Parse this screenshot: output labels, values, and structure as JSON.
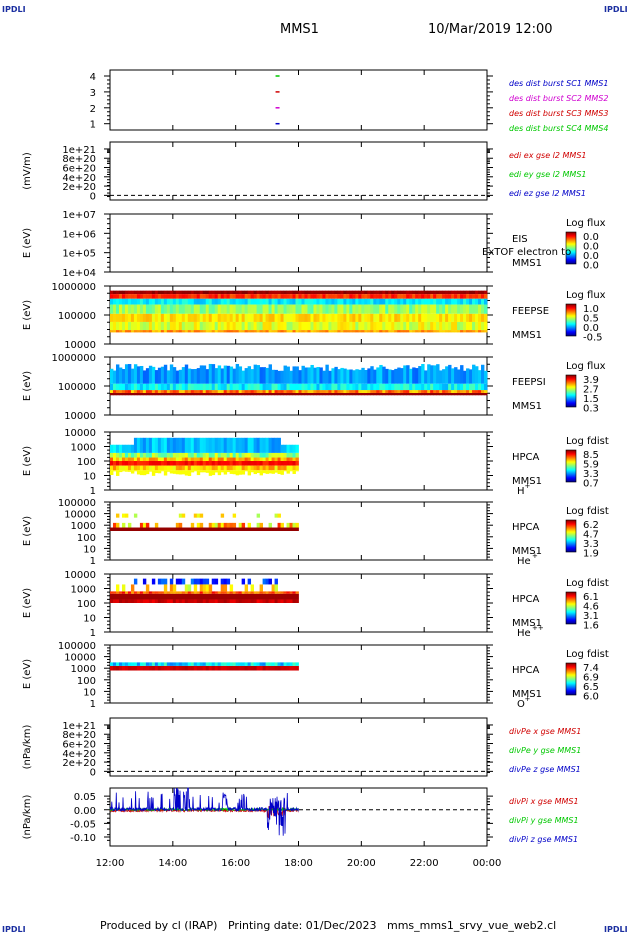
{
  "corner_label": "IPDLI",
  "title": "MMS1",
  "date": "10/Mar/2019 12:00",
  "footer": {
    "produced": "Produced by cl (IRAP)",
    "printing": "Printing date: 01/Dec/2023",
    "file": "mms_mms1_srvy_vue_web2.cl"
  },
  "colors": {
    "mms1": "#0000c8",
    "mms2": "#d000d0",
    "mms3": "#d00000",
    "mms4": "#00c800",
    "x": "#d00000",
    "y": "#00c800",
    "z": "#0000c8"
  },
  "chart_data": {
    "type": "multi-panel time series",
    "x_tick_labels": [
      "12:00",
      "14:00",
      "16:00",
      "18:00",
      "20:00",
      "22:00",
      "00:00"
    ],
    "xlim": [
      "12:00",
      "00:00"
    ],
    "panels": [
      {
        "id": "dist-burst",
        "type": "scatter",
        "y_ticks": [
          "4",
          "3",
          "2",
          "1"
        ],
        "legend": [
          {
            "text": "des dist burst SC1 MMS1",
            "color": "#0000c8"
          },
          {
            "text": "des dist burst SC2 MMS2",
            "color": "#d000d0"
          },
          {
            "text": "des dist burst SC3 MMS3",
            "color": "#d00000"
          },
          {
            "text": "des dist burst SC4 MMS4",
            "color": "#00c800"
          }
        ],
        "points": [
          {
            "x": "17:20",
            "y": 4,
            "color": "#00c800"
          },
          {
            "x": "17:20",
            "y": 3,
            "color": "#d00000"
          },
          {
            "x": "17:20",
            "y": 2,
            "color": "#d000d0"
          },
          {
            "x": "17:20",
            "y": 1,
            "color": "#0000c8"
          }
        ]
      },
      {
        "id": "edi-e",
        "type": "line",
        "ylabel": "(mV/m)",
        "y_ticks": [
          "1e+21",
          "8e+20",
          "6e+20",
          "4e+20",
          "2e+20",
          "0"
        ],
        "legend": [
          {
            "text": "edi ex gse l2 MMS1",
            "color": "#d00000"
          },
          {
            "text": "edi ey gse l2 MMS1",
            "color": "#00c800"
          },
          {
            "text": "edi ez gse l2 MMS1",
            "color": "#0000c8"
          }
        ],
        "zero_line": true
      },
      {
        "id": "eis",
        "type": "heatmap",
        "ylabel": "E (eV)",
        "y_ticks": [
          "1e+07",
          "1e+06",
          "1e+05",
          "1e+04"
        ],
        "labels": [
          "EIS",
          "MMS1"
        ],
        "overlay_text": "ExTOF electron to",
        "colorbar_title": "Log flux",
        "colorbar_ticks": [
          "0.0",
          "0.0",
          "0.0",
          "0.0"
        ]
      },
      {
        "id": "feeps-e",
        "type": "heatmap",
        "ylabel": "E (eV)",
        "y_ticks": [
          "1000000",
          "100000",
          "10000"
        ],
        "labels": [
          "FEEPSE",
          "MMS1"
        ],
        "colorbar_title": "Log flux",
        "colorbar_ticks": [
          "1.0",
          "0.5",
          "0.0",
          "-0.5"
        ],
        "time_range": [
          "12:00",
          "00:00"
        ]
      },
      {
        "id": "feeps-i",
        "type": "heatmap",
        "ylabel": "E (eV)",
        "y_ticks": [
          "1000000",
          "100000",
          "10000"
        ],
        "labels": [
          "FEEPSI",
          "MMS1"
        ],
        "colorbar_title": "Log flux",
        "colorbar_ticks": [
          "3.9",
          "2.7",
          "1.5",
          "0.3"
        ],
        "time_range": [
          "12:00",
          "00:00"
        ]
      },
      {
        "id": "hpca-h",
        "type": "heatmap",
        "ylabel": "E (eV)",
        "y_ticks": [
          "10000",
          "1000",
          "100",
          "10",
          "1"
        ],
        "labels": [
          "HPCA",
          "MMS1"
        ],
        "species": "H",
        "species_sup": "+",
        "colorbar_title": "Log fdist",
        "colorbar_ticks": [
          "8.5",
          "5.9",
          "3.3",
          "0.7"
        ],
        "time_range": [
          "12:00",
          "18:00"
        ]
      },
      {
        "id": "hpca-he",
        "type": "heatmap",
        "ylabel": "E (eV)",
        "y_ticks": [
          "100000",
          "10000",
          "1000",
          "100",
          "10",
          "1"
        ],
        "labels": [
          "HPCA",
          "MMS1"
        ],
        "species": "He",
        "species_sup": "+",
        "colorbar_title": "Log fdist",
        "colorbar_ticks": [
          "6.2",
          "4.7",
          "3.3",
          "1.9"
        ],
        "time_range": [
          "12:00",
          "18:00"
        ]
      },
      {
        "id": "hpca-he2",
        "type": "heatmap",
        "ylabel": "E (eV)",
        "y_ticks": [
          "10000",
          "1000",
          "100",
          "10",
          "1"
        ],
        "labels": [
          "HPCA",
          "MMS1"
        ],
        "species": "He",
        "species_sup": "++",
        "colorbar_title": "Log fdist",
        "colorbar_ticks": [
          "6.1",
          "4.6",
          "3.1",
          "1.6"
        ],
        "time_range": [
          "12:00",
          "18:00"
        ]
      },
      {
        "id": "hpca-o",
        "type": "heatmap",
        "ylabel": "E (eV)",
        "y_ticks": [
          "100000",
          "10000",
          "1000",
          "100",
          "10",
          "1"
        ],
        "labels": [
          "HPCA",
          "MMS1"
        ],
        "species": "O",
        "species_sup": "+",
        "colorbar_title": "Log fdist",
        "colorbar_ticks": [
          "7.4",
          "6.9",
          "6.5",
          "6.0"
        ],
        "time_range": [
          "12:00",
          "18:00"
        ]
      },
      {
        "id": "divpe",
        "type": "line",
        "ylabel": "(nPa/km)",
        "y_ticks": [
          "1e+21",
          "8e+20",
          "6e+20",
          "4e+20",
          "2e+20",
          "0"
        ],
        "legend": [
          {
            "text": "divPe x gse MMS1",
            "color": "#d00000"
          },
          {
            "text": "divPe y gse MMS1",
            "color": "#00c800"
          },
          {
            "text": "divPe z gse MMS1",
            "color": "#0000c8"
          }
        ],
        "zero_line": true
      },
      {
        "id": "divpi",
        "type": "line",
        "ylabel": "(nPa/km)",
        "y_ticks": [
          "0.05",
          "0.00",
          "-0.05",
          "-0.10"
        ],
        "ylim": [
          -0.12,
          0.08
        ],
        "legend": [
          {
            "text": "divPi x gse MMS1",
            "color": "#d00000"
          },
          {
            "text": "divPi y gse MMS1",
            "color": "#00c800"
          },
          {
            "text": "divPi z gse MMS1",
            "color": "#0000c8"
          }
        ],
        "zero_line": true,
        "time_range": [
          "12:00",
          "18:00"
        ]
      }
    ]
  }
}
